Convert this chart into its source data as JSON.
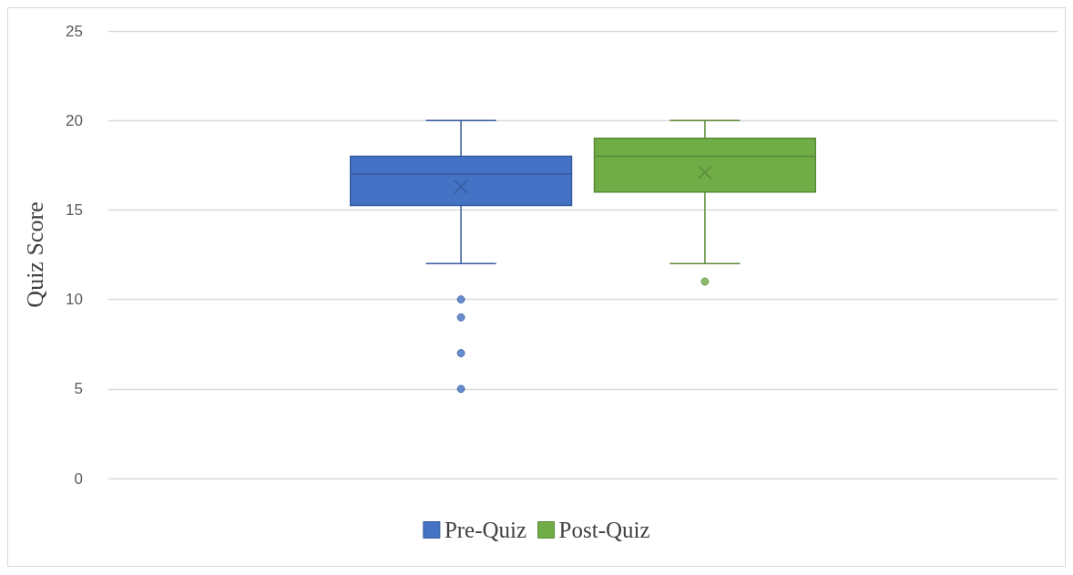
{
  "chart_data": {
    "type": "box",
    "ylabel": "Quiz Score",
    "categories": [
      null
    ],
    "series": [
      {
        "name": "Pre-Quiz",
        "color": "#4472c4",
        "boxes": [
          {
            "low": 12,
            "q1": 15.25,
            "median": 17,
            "q3": 18,
            "high": 20,
            "mean": 16.3,
            "outliers": [
              10,
              9,
              7,
              5
            ]
          }
        ]
      },
      {
        "name": "Post-Quiz",
        "color": "#70ad47",
        "boxes": [
          {
            "low": 12,
            "q1": 16,
            "median": 18,
            "q3": 19,
            "high": 20,
            "mean": 17.1,
            "outliers": [
              11
            ]
          }
        ]
      }
    ],
    "ylim": [
      0,
      25
    ],
    "yticks": [
      0,
      5,
      10,
      15,
      20,
      25
    ],
    "grid": "y",
    "legend": "bottom",
    "tick_labels": "y"
  }
}
